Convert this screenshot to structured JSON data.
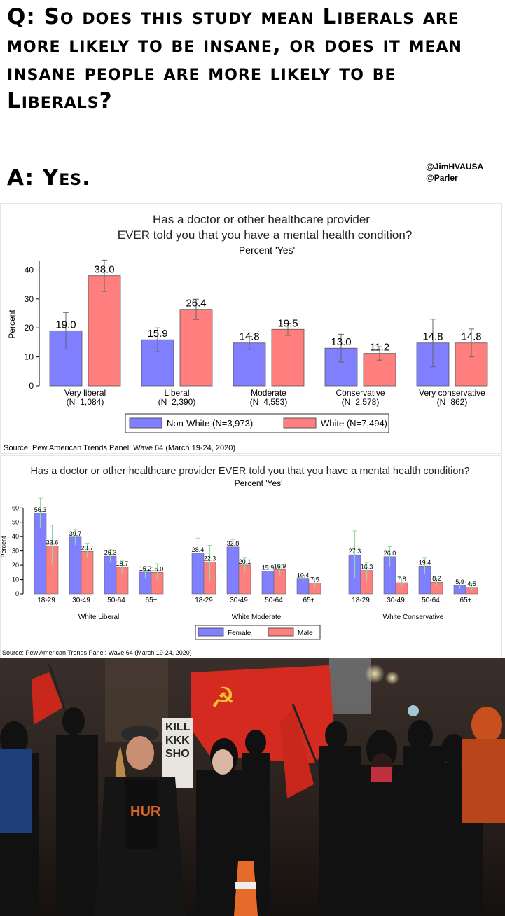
{
  "meme": {
    "question": "Q: So does this study mean Liberals are more likely to be insane, or does it mean insane people are more likely to be Liberals?",
    "answer": "A: Yes.",
    "handles": [
      "@JimHVAUSA",
      "@Parler"
    ]
  },
  "chart_data": [
    {
      "type": "bar",
      "title": "Has a doctor or other healthcare provider EVER told you that you have a mental health condition?",
      "subtitle": "Percent 'Yes'",
      "ylabel": "Percent",
      "ylim": [
        0,
        43
      ],
      "yticks": [
        0,
        10,
        20,
        30,
        40
      ],
      "grid": false,
      "legend_position": "bottom",
      "categories": [
        "Very liberal\n(N=1,084)",
        "Liberal\n(N=2,390)",
        "Moderate\n(N=4,553)",
        "Conservative\n(N=2,578)",
        "Very conservative\n(N=862)"
      ],
      "series": [
        {
          "name": "Non-White (N=3,973)",
          "color": "#7f7fff",
          "values": [
            19.0,
            15.9,
            14.8,
            13.0,
            14.8
          ],
          "err_low": [
            12.7,
            11.8,
            12.6,
            8.2,
            6.6
          ],
          "err_high": [
            25.3,
            20.0,
            17.0,
            17.8,
            23.0
          ]
        },
        {
          "name": "White (N=7,494)",
          "color": "#ff7f7f",
          "values": [
            38.0,
            26.4,
            19.5,
            11.2,
            14.8
          ],
          "err_low": [
            32.6,
            22.9,
            17.4,
            8.9,
            10.0
          ],
          "err_high": [
            43.4,
            29.9,
            21.6,
            13.5,
            19.6
          ]
        }
      ],
      "labels": [
        [
          "19.0",
          "15.9",
          "14.8",
          "13.0",
          "14.8"
        ],
        [
          "38.0",
          "26.4",
          "19.5",
          "11.2",
          "14.8"
        ]
      ],
      "source": "Source: Pew American Trends Panel: Wave 64 (March 19-24, 2020)"
    },
    {
      "type": "bar",
      "title": "Has a doctor or other healthcare provider EVER told you that you have a mental health condition?",
      "subtitle": "Percent 'Yes'",
      "ylabel": "Percent",
      "ylim": [
        0,
        66
      ],
      "yticks": [
        0,
        10,
        20,
        30,
        40,
        50,
        60
      ],
      "grid": false,
      "legend_position": "bottom",
      "groups": [
        "White Liberal",
        "White Moderate",
        "White Conservative"
      ],
      "age_categories": [
        "18-29",
        "30-49",
        "50-64",
        "65+"
      ],
      "series": [
        {
          "name": "Female",
          "color": "#7f7fff",
          "values": [
            [
              56.3,
              39.7,
              26.3,
              15.2
            ],
            [
              28.4,
              32.8,
              15.9,
              10.4
            ],
            [
              27.3,
              26.0,
              19.4,
              5.9
            ]
          ],
          "err_low": [
            [
              46,
              34,
              22,
              11
            ],
            [
              18,
              28,
              13,
              7
            ],
            [
              11,
              19,
              14,
              3.5
            ]
          ],
          "err_high": [
            [
              67,
              45,
              31,
              19
            ],
            [
              39,
              38,
              19,
              13
            ],
            [
              44,
              33,
              25,
              8
            ]
          ]
        },
        {
          "name": "Male",
          "color": "#ff7f7f",
          "values": [
            [
              33.6,
              29.7,
              18.7,
              15.0
            ],
            [
              22.3,
              20.1,
              16.9,
              7.5
            ],
            [
              16.3,
              7.8,
              8.2,
              4.5
            ]
          ],
          "err_low": [
            [
              20,
              25,
              14,
              10
            ],
            [
              9,
              15,
              13,
              4
            ],
            [
              9,
              5,
              5.5,
              2
            ]
          ],
          "err_high": [
            [
              48,
              35,
              23,
              21
            ],
            [
              34,
              25,
              20,
              11
            ],
            [
              22,
              11,
              11,
              7
            ]
          ]
        }
      ],
      "labels": [
        [
          [
            "56.3",
            "39.7",
            "26.3",
            "15.2"
          ],
          [
            "28.4",
            "32.8",
            "15.9",
            "10.4"
          ],
          [
            "27.3",
            "26.0",
            "19.4",
            "5.9"
          ]
        ],
        [
          [
            "33.6",
            "29.7",
            "18.7",
            "15.0"
          ],
          [
            "22.3",
            "20.1",
            "16.9",
            "7.5"
          ],
          [
            "16.3",
            "7.8",
            "8.2",
            "4.5"
          ]
        ]
      ],
      "source": "Source: Pew American Trends Panel: Wave 64 (March 19-24, 2020)"
    }
  ],
  "photo": {
    "sign_text": [
      "KILL",
      "KKK",
      "SHO"
    ],
    "shirt_text": "HUR",
    "colors": {
      "flag_red": "#d42a1f",
      "hammer_sickle": "#f2c12e"
    }
  }
}
